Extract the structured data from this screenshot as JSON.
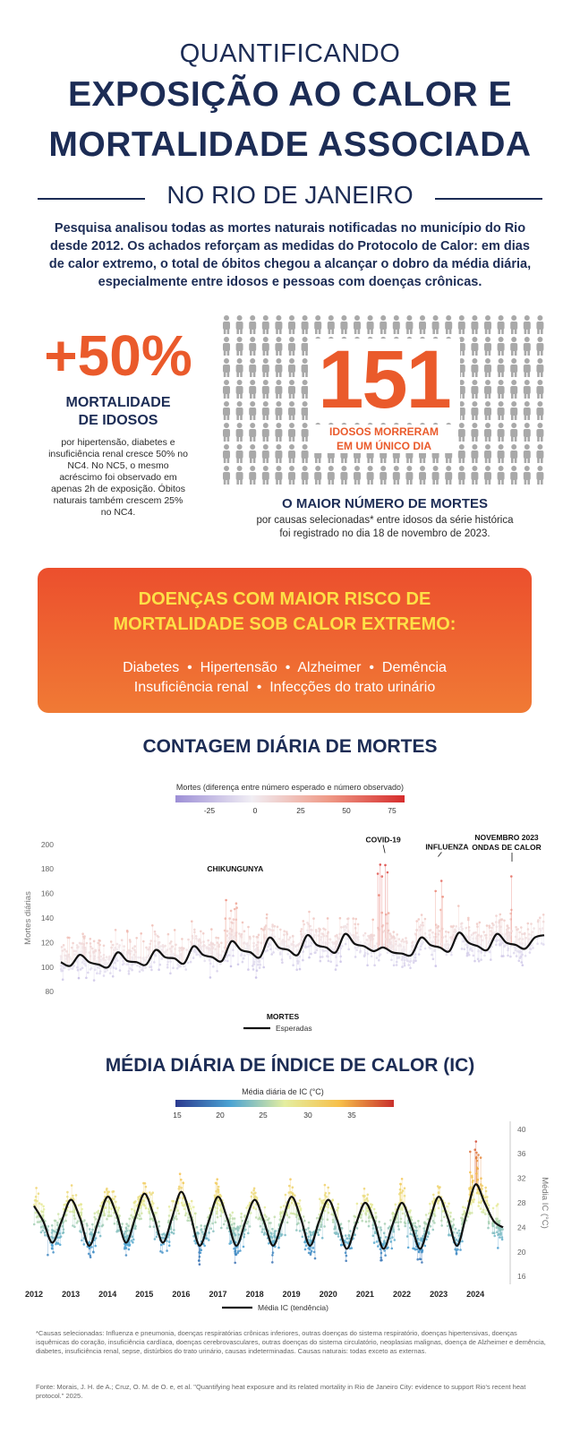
{
  "header": {
    "line1": "QUANTIFICANDO",
    "line2": "EXPOSIÇÃO AO CALOR E",
    "line3": "MORTALIDADE ASSOCIADA",
    "line4": "NO RIO DE JANEIRO"
  },
  "intro": "Pesquisa analisou todas as mortes naturais notificadas no município do Rio desde 2012. Os achados reforçam as medidas do Protocolo de Calor: em dias de calor extremo, o total de óbitos chegou a alcançar o dobro da média diária, especialmente entre idosos e pessoas com doenças crônicas.",
  "stat50": {
    "value": "+50%",
    "label_line1": "MORTALIDADE",
    "label_line2": "DE IDOSOS",
    "text": "por hipertensão, diabetes e insuficiência renal cresce 50% no NC4. No NC5, o mesmo acréscimo foi observado em apenas 2h de exposição. Óbitos naturais também crescem 25% no NC4."
  },
  "stat151": {
    "value": "151",
    "label_line1": "IDOSOS MORRERAM",
    "label_line2": "EM UM ÚNICO DIA",
    "headline": "O MAIOR NÚMERO DE MORTES",
    "text_line1": "por causas selecionadas* entre idosos da série histórica",
    "text_line2": "foi registrado no dia 18 de novembro de 2023."
  },
  "diseases": {
    "title_line1": "DOENÇAS COM MAIOR RISCO DE",
    "title_line2": "MORTALIDADE SOB CALOR EXTREMO:",
    "row1": "Diabetes  •  Hipertensão  •  Alzheimer  •  Demência",
    "row2": "Insuficiência renal  •  Infecções do trato urinário"
  },
  "colors": {
    "navy": "#1c2c55",
    "orange": "#ea5a2b",
    "yellow": "#fde047",
    "person": "#a9a9a9"
  },
  "chart_data": [
    {
      "type": "scatter",
      "title": "CONTAGEM DIÁRIA DE MORTES",
      "ylabel": "Mortes diárias",
      "ylim": [
        75,
        205
      ],
      "yticks": [
        80,
        100,
        120,
        140,
        160,
        180,
        200
      ],
      "xlim": [
        2012.0,
        2024.75
      ],
      "colorbar": {
        "title": "Mortes (diferença entre número esperado e número observado)",
        "ticks": [
          "-25",
          "0",
          "25",
          "50",
          "75"
        ],
        "stops": [
          "#9d8fd6",
          "#f1eef4",
          "#ef9a87",
          "#d62c2c"
        ]
      },
      "annotations": [
        {
          "label": "CHIKUNGUNYA",
          "x": 2016.6,
          "y": 172
        },
        {
          "label": "COVID-19",
          "x": 2020.55,
          "y": 193
        },
        {
          "label": "INFLUENZA",
          "x": 2021.95,
          "y": 190
        },
        {
          "label": "NOVEMBRO 2023",
          "x": 2023.9,
          "y": 186
        },
        {
          "label": "ONDAS DE CALOR",
          "x": 2023.9,
          "y": 186
        }
      ],
      "legend": {
        "title": "MORTES",
        "line": "Esperadas"
      },
      "series": [
        {
          "name": "Esperadas",
          "x": [
            2012.0,
            2012.25,
            2012.5,
            2012.75,
            2013.0,
            2013.25,
            2013.5,
            2013.75,
            2014.0,
            2014.25,
            2014.5,
            2014.75,
            2015.0,
            2015.25,
            2015.5,
            2015.75,
            2016.0,
            2016.25,
            2016.5,
            2016.75,
            2017.0,
            2017.25,
            2017.5,
            2017.75,
            2018.0,
            2018.25,
            2018.5,
            2018.75,
            2019.0,
            2019.25,
            2019.5,
            2019.75,
            2020.0,
            2020.25,
            2020.5,
            2020.75,
            2021.0,
            2021.25,
            2021.5,
            2021.75,
            2022.0,
            2022.25,
            2022.5,
            2022.75,
            2023.0,
            2023.25,
            2023.5,
            2023.75,
            2024.0,
            2024.25,
            2024.5,
            2024.75
          ],
          "values": [
            104,
            101,
            110,
            104,
            102,
            100,
            112,
            105,
            104,
            102,
            114,
            108,
            107,
            103,
            117,
            110,
            108,
            105,
            121,
            114,
            112,
            108,
            124,
            116,
            114,
            110,
            126,
            118,
            116,
            112,
            127,
            119,
            117,
            113,
            116,
            112,
            111,
            110,
            124,
            118,
            116,
            113,
            128,
            120,
            117,
            114,
            127,
            120,
            118,
            115,
            124,
            126
          ]
        }
      ]
    },
    {
      "type": "scatter",
      "title": "MÉDIA DIÁRIA DE ÍNDICE DE CALOR (IC)",
      "ylabel": "Média IC (°C)",
      "ylim": [
        15,
        41
      ],
      "yticks": [
        16,
        20,
        24,
        28,
        32,
        36,
        40
      ],
      "xlim": [
        2012.0,
        2024.75
      ],
      "xticks": [
        "2012",
        "2013",
        "2014",
        "2015",
        "2016",
        "2017",
        "2018",
        "2019",
        "2020",
        "2021",
        "2022",
        "2023",
        "2024"
      ],
      "colorbar": {
        "title": "Média diária de IC (°C)",
        "ticks": [
          "15",
          "20",
          "25",
          "30",
          "35"
        ],
        "stops": [
          "#2b3a8f",
          "#4ba3d3",
          "#e4eea0",
          "#f7c04a",
          "#c9302c"
        ]
      },
      "legend": {
        "line": "Média IC (tendência)"
      },
      "series": [
        {
          "name": "Média IC (tendência)",
          "x": [
            2012.0,
            2012.25,
            2012.5,
            2012.75,
            2013.0,
            2013.25,
            2013.5,
            2013.75,
            2014.0,
            2014.25,
            2014.5,
            2014.75,
            2015.0,
            2015.25,
            2015.5,
            2015.75,
            2016.0,
            2016.25,
            2016.5,
            2016.75,
            2017.0,
            2017.25,
            2017.5,
            2017.75,
            2018.0,
            2018.25,
            2018.5,
            2018.75,
            2019.0,
            2019.25,
            2019.5,
            2019.75,
            2020.0,
            2020.25,
            2020.5,
            2020.75,
            2021.0,
            2021.25,
            2021.5,
            2021.75,
            2022.0,
            2022.25,
            2022.5,
            2022.75,
            2023.0,
            2023.25,
            2023.5,
            2023.75,
            2024.0,
            2024.25,
            2024.5,
            2024.75
          ],
          "values": [
            27.5,
            25.0,
            21.5,
            25.0,
            28.5,
            25.5,
            21.0,
            25.0,
            29.0,
            26.0,
            21.5,
            25.5,
            29.5,
            26.0,
            21.5,
            25.5,
            29.8,
            26.0,
            21.0,
            25.0,
            29.0,
            25.5,
            21.0,
            25.0,
            28.5,
            25.0,
            21.0,
            25.0,
            29.0,
            25.5,
            21.0,
            25.0,
            28.5,
            25.0,
            20.5,
            24.5,
            28.0,
            25.0,
            20.5,
            24.5,
            28.0,
            24.5,
            20.5,
            25.0,
            29.0,
            25.5,
            21.0,
            26.0,
            31.0,
            28.0,
            25.0,
            24.0
          ]
        }
      ]
    }
  ],
  "footnote": "*Causas selecionadas: Influenza e pneumonia, doenças respiratórias crônicas inferiores, outras doenças do sistema respiratório, doenças hipertensivas, doenças isquêmicas do coração, insuficiência cardíaca, doenças cerebrovasculares, outras doenças do sistema circulatório, neoplasias malignas, doença de Alzheimer e demência, diabetes, insuficiência renal, sepse, distúrbios do trato urinário, causas indeterminadas. Causas naturais: todas exceto as externas.",
  "source": "Fonte: Morais, J. H. de A.; Cruz, O. M. de O. e, et al. \"Quantifying heat exposure and its related mortality in Rio de Janeiro City: evidence to support Rio's recent heat protocol.\" 2025."
}
